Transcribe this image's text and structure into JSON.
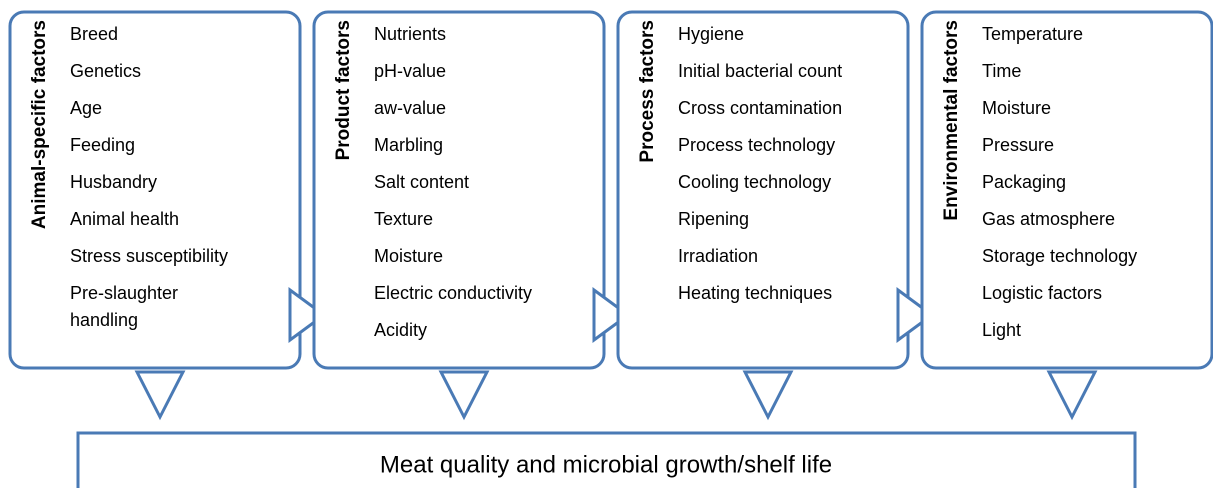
{
  "columns": [
    {
      "title": "Animal-specific factors",
      "items": [
        "Breed",
        "Genetics",
        "Age",
        "Feeding",
        "Husbandry",
        "Animal health",
        "Stress susceptibility",
        "Pre-slaughter handling"
      ]
    },
    {
      "title": "Product factors",
      "items": [
        "Nutrients",
        "pH-value",
        "aw-value",
        "Marbling",
        "Salt content",
        "Texture",
        "Moisture",
        "Electric conductivity",
        "Acidity"
      ]
    },
    {
      "title": "Process factors",
      "items": [
        "Hygiene",
        "Initial bacterial count",
        "Cross contamination",
        "Process technology",
        "Cooling technology",
        "Ripening",
        "Irradiation",
        "Heating techniques"
      ]
    },
    {
      "title": "Environmental factors",
      "items": [
        "Temperature",
        "Time",
        "Moisture",
        "Pressure",
        "Packaging",
        "Gas atmosphere",
        "Storage technology",
        "Logistic factors",
        "Light"
      ]
    }
  ],
  "footer": "Meat quality and microbial growth/shelf life"
}
